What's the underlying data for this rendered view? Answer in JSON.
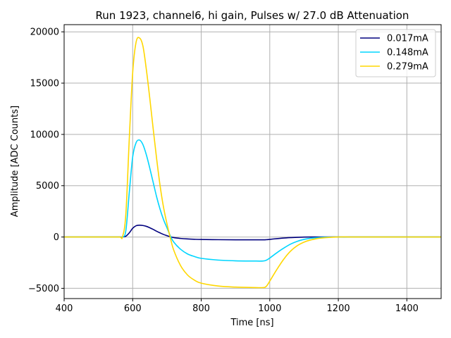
{
  "chart_data": {
    "type": "line",
    "title": "Run 1923, channel6, hi gain, Pulses w/ 27.0 dB Attenuation",
    "xlabel": "Time [ns]",
    "ylabel": "Amplitude [ADC Counts]",
    "xlim": [
      400,
      1500
    ],
    "ylim": [
      -6000,
      20700
    ],
    "xticks": [
      400,
      600,
      800,
      1000,
      1200,
      1400
    ],
    "yticks": [
      -5000,
      0,
      5000,
      10000,
      15000,
      20000
    ],
    "xtick_labels": [
      "400",
      "600",
      "800",
      "1000",
      "1200",
      "1400"
    ],
    "ytick_labels": [
      "−5000",
      "0",
      "5000",
      "10000",
      "15000",
      "20000"
    ],
    "grid": true,
    "legend_position": "top-right",
    "x": [
      400,
      500,
      560,
      570,
      580,
      590,
      600,
      610,
      620,
      630,
      640,
      650,
      660,
      670,
      680,
      690,
      700,
      710,
      720,
      740,
      760,
      780,
      800,
      850,
      900,
      950,
      980,
      990,
      1000,
      1020,
      1040,
      1060,
      1080,
      1100,
      1120,
      1150,
      1200,
      1250,
      1300,
      1400,
      1500
    ],
    "series": [
      {
        "name": "0.017mA",
        "color": "#00007f",
        "values": [
          0,
          0,
          0,
          0,
          80,
          400,
          850,
          1100,
          1150,
          1120,
          1040,
          900,
          740,
          560,
          400,
          250,
          130,
          20,
          -60,
          -140,
          -190,
          -220,
          -240,
          -260,
          -270,
          -270,
          -270,
          -260,
          -230,
          -160,
          -100,
          -60,
          -30,
          -10,
          0,
          0,
          0,
          0,
          0,
          0,
          0
        ]
      },
      {
        "name": "0.148mA",
        "color": "#00d5ff",
        "values": [
          0,
          0,
          0,
          0,
          600,
          4300,
          7800,
          9200,
          9450,
          9000,
          8000,
          6700,
          5300,
          3900,
          2700,
          1700,
          900,
          100,
          -500,
          -1200,
          -1650,
          -1900,
          -2080,
          -2250,
          -2320,
          -2340,
          -2340,
          -2260,
          -2050,
          -1550,
          -1100,
          -700,
          -420,
          -230,
          -120,
          -40,
          0,
          0,
          0,
          0,
          0
        ]
      },
      {
        "name": "0.279mA",
        "color": "#ffd700",
        "values": [
          0,
          0,
          0,
          0,
          2200,
          9500,
          16000,
          19000,
          19400,
          18600,
          16300,
          13500,
          10500,
          7600,
          5000,
          2900,
          1300,
          -100,
          -1300,
          -2800,
          -3700,
          -4200,
          -4500,
          -4780,
          -4880,
          -4920,
          -4930,
          -4800,
          -4300,
          -3200,
          -2200,
          -1400,
          -850,
          -500,
          -280,
          -100,
          0,
          0,
          0,
          0,
          0
        ]
      }
    ]
  }
}
